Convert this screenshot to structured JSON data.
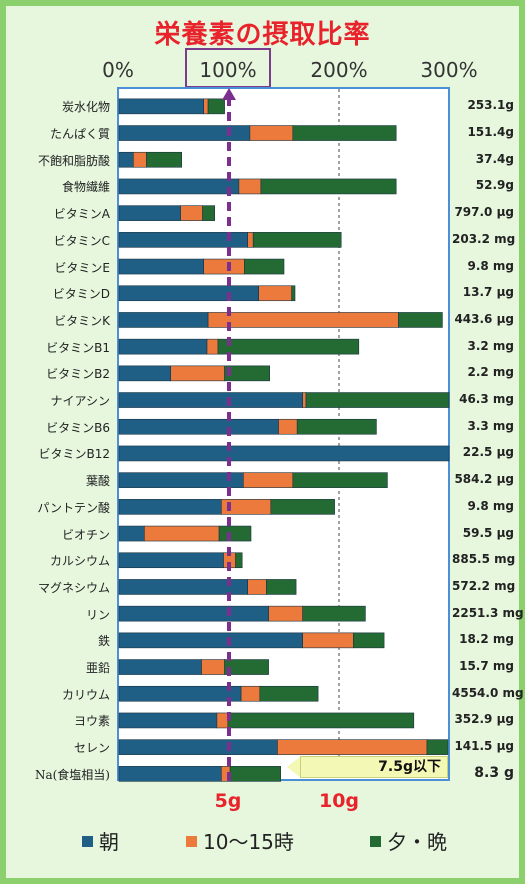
{
  "chart_data": {
    "type": "bar",
    "stacked": true,
    "orientation": "horizontal",
    "title": "栄養素の摂取比率",
    "x_ticks": [
      "0%",
      "100%",
      "200%",
      "300%"
    ],
    "xlim": [
      0,
      300
    ],
    "reference_line": 100,
    "categories": [
      "炭水化物",
      "たんぱく質",
      "不飽和脂肪酸",
      "食物繊維",
      "ビタミンA",
      "ビタミンC",
      "ビタミンE",
      "ビタミンD",
      "ビタミンK",
      "ビタミンB1",
      "ビタミンB2",
      "ナイアシン",
      "ビタミンB6",
      "ビタミンB12",
      "葉酸",
      "パントテン酸",
      "ビオチン",
      "カルシウム",
      "マグネシウム",
      "リン",
      "鉄",
      "亜鉛",
      "カリウム",
      "ヨウ素",
      "セレン",
      "Na(食塩相当)"
    ],
    "amounts": [
      "253.1g",
      "151.4g",
      "37.4g",
      "52.9g",
      "797.0 µg",
      "203.2 mg",
      "9.8 mg",
      "13.7 µg",
      "443.6 µg",
      "3.2 mg",
      "2.2 mg",
      "46.3 mg",
      "3.3 mg",
      "22.5 µg",
      "584.2 µg",
      "9.8 mg",
      "59.5 µg",
      "885.5 mg",
      "572.2 mg",
      "2251.3 mg",
      "18.2 mg",
      "15.7 mg",
      "4554.0 mg",
      "352.9 µg",
      "141.5 µg",
      "8.3 g"
    ],
    "series": [
      {
        "name": "朝",
        "color": "#1f5f86",
        "values": [
          77,
          119,
          13,
          109,
          56,
          117,
          77,
          127,
          81,
          80,
          47,
          167,
          145,
          300,
          113,
          93,
          23,
          95,
          117,
          136,
          167,
          75,
          111,
          89,
          144,
          93
        ]
      },
      {
        "name": "10〜15時",
        "color": "#ec7a3c",
        "values": [
          4,
          39,
          12,
          20,
          20,
          5,
          37,
          30,
          173,
          10,
          49,
          3,
          17,
          0,
          45,
          45,
          68,
          11,
          17,
          31,
          46,
          21,
          17,
          10,
          136,
          8
        ]
      },
      {
        "name": "夕・晩",
        "color": "#236b32",
        "values": [
          15,
          94,
          32,
          123,
          11,
          80,
          36,
          3,
          40,
          128,
          41,
          130,
          72,
          0,
          86,
          58,
          29,
          6,
          27,
          57,
          28,
          40,
          53,
          169,
          19,
          46
        ]
      }
    ],
    "salt_axis": {
      "ticks": [
        "5g",
        "10g"
      ],
      "ticks_value": [
        5,
        10
      ]
    },
    "annotation": "7.5g以下"
  }
}
